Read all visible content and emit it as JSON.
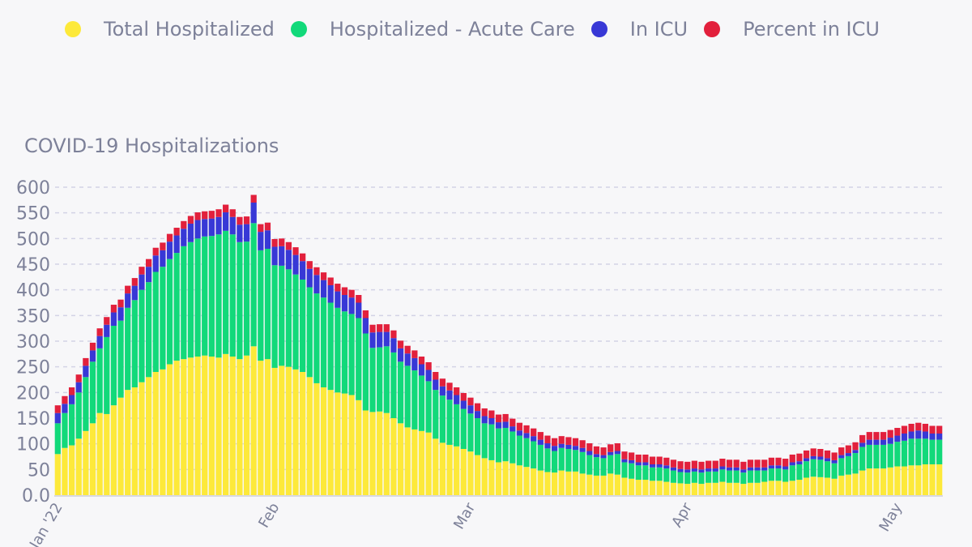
{
  "legend": [
    {
      "label": "Total Hospitalized",
      "color": "#fde93a"
    },
    {
      "label": "Hospitalized - Acute Care",
      "color": "#12d97a"
    },
    {
      "label": "In ICU",
      "color": "#3838d6"
    },
    {
      "label": "Percent in ICU",
      "color": "#e2203c"
    }
  ],
  "chart_data": {
    "type": "bar",
    "stacked": true,
    "title": "COVID-19 Hospitalizations",
    "xlabel": "",
    "ylabel": "",
    "ylim": [
      0,
      600
    ],
    "yticks": [
      "0.0",
      "50",
      "100",
      "150",
      "200",
      "250",
      "300",
      "350",
      "400",
      "450",
      "500",
      "550",
      "600"
    ],
    "ytick_values": [
      0,
      50,
      100,
      150,
      200,
      250,
      300,
      350,
      400,
      450,
      500,
      550,
      600
    ],
    "xticks": [
      {
        "label": "Jan '22",
        "index": 0
      },
      {
        "label": "Feb",
        "index": 31
      },
      {
        "label": "Mar",
        "index": 59
      },
      {
        "label": "Apr",
        "index": 90
      },
      {
        "label": "May",
        "index": 120
      }
    ],
    "grid": true,
    "legend_position": "top",
    "series": [
      {
        "name": "Total Hospitalized",
        "values": [
          80,
          92,
          97,
          110,
          125,
          140,
          160,
          158,
          175,
          190,
          205,
          210,
          220,
          230,
          240,
          245,
          255,
          262,
          265,
          268,
          270,
          272,
          270,
          268,
          275,
          270,
          265,
          272,
          290,
          262,
          265,
          248,
          252,
          250,
          245,
          240,
          230,
          218,
          210,
          205,
          200,
          198,
          195,
          185,
          165,
          162,
          163,
          160,
          150,
          140,
          132,
          128,
          125,
          122,
          110,
          102,
          98,
          95,
          90,
          85,
          78,
          72,
          68,
          64,
          66,
          62,
          58,
          55,
          52,
          48,
          45,
          44,
          48,
          46,
          46,
          42,
          40,
          38,
          38,
          42,
          40,
          34,
          32,
          30,
          30,
          28,
          28,
          26,
          24,
          23,
          22,
          24,
          22,
          24,
          24,
          26,
          24,
          24,
          22,
          24,
          24,
          26,
          28,
          28,
          26,
          28,
          30,
          34,
          36,
          35,
          34,
          32,
          38,
          40,
          42,
          48,
          52,
          52,
          52,
          54,
          56,
          56,
          58,
          58,
          60,
          60,
          60
        ]
      },
      {
        "name": "Hospitalized - Acute Care",
        "values": [
          60,
          68,
          80,
          90,
          105,
          120,
          126,
          150,
          155,
          150,
          160,
          170,
          180,
          185,
          195,
          200,
          205,
          210,
          220,
          225,
          230,
          232,
          235,
          240,
          240,
          238,
          228,
          222,
          240,
          215,
          215,
          200,
          195,
          190,
          185,
          180,
          175,
          175,
          175,
          170,
          165,
          160,
          158,
          160,
          150,
          125,
          125,
          130,
          128,
          120,
          120,
          115,
          108,
          100,
          95,
          92,
          88,
          82,
          78,
          74,
          72,
          68,
          70,
          66,
          65,
          62,
          58,
          56,
          53,
          50,
          46,
          42,
          44,
          44,
          42,
          42,
          38,
          36,
          34,
          36,
          40,
          30,
          30,
          28,
          28,
          26,
          26,
          26,
          24,
          22,
          22,
          22,
          22,
          22,
          22,
          24,
          24,
          24,
          22,
          24,
          24,
          22,
          24,
          24,
          24,
          30,
          30,
          32,
          34,
          34,
          32,
          30,
          34,
          36,
          40,
          46,
          46,
          46,
          46,
          46,
          48,
          50,
          52,
          52,
          50,
          48,
          48
        ]
      },
      {
        "name": "In ICU",
        "values": [
          20,
          18,
          18,
          20,
          22,
          22,
          24,
          24,
          26,
          26,
          28,
          28,
          30,
          30,
          32,
          32,
          34,
          34,
          34,
          36,
          36,
          34,
          34,
          34,
          36,
          34,
          34,
          34,
          40,
          36,
          36,
          36,
          38,
          38,
          38,
          36,
          36,
          36,
          34,
          34,
          32,
          32,
          32,
          30,
          30,
          30,
          30,
          28,
          28,
          26,
          24,
          24,
          22,
          22,
          20,
          18,
          18,
          18,
          16,
          16,
          14,
          14,
          12,
          12,
          12,
          10,
          10,
          10,
          10,
          10,
          10,
          10,
          8,
          8,
          8,
          8,
          8,
          6,
          6,
          6,
          6,
          6,
          6,
          6,
          6,
          6,
          6,
          6,
          6,
          6,
          6,
          6,
          6,
          6,
          6,
          6,
          6,
          6,
          6,
          6,
          6,
          6,
          6,
          6,
          6,
          6,
          6,
          6,
          6,
          6,
          6,
          6,
          6,
          6,
          6,
          8,
          10,
          10,
          10,
          12,
          12,
          14,
          14,
          16,
          14,
          12,
          12
        ]
      },
      {
        "name": "Percent in ICU",
        "values": [
          15,
          15,
          15,
          15,
          15,
          15,
          15,
          15,
          15,
          15,
          15,
          15,
          15,
          15,
          15,
          15,
          15,
          15,
          15,
          15,
          15,
          15,
          15,
          15,
          15,
          15,
          15,
          15,
          15,
          15,
          15,
          15,
          15,
          15,
          15,
          15,
          15,
          15,
          15,
          15,
          15,
          15,
          15,
          15,
          15,
          15,
          15,
          15,
          15,
          15,
          15,
          15,
          15,
          15,
          15,
          15,
          15,
          15,
          15,
          15,
          15,
          15,
          15,
          15,
          15,
          15,
          15,
          15,
          15,
          15,
          15,
          15,
          15,
          15,
          15,
          15,
          15,
          15,
          15,
          15,
          15,
          15,
          15,
          15,
          15,
          15,
          15,
          15,
          15,
          15,
          15,
          15,
          15,
          15,
          15,
          15,
          15,
          15,
          15,
          15,
          15,
          15,
          15,
          15,
          15,
          15,
          15,
          15,
          15,
          15,
          15,
          15,
          15,
          15,
          15,
          15,
          15,
          15,
          15,
          15,
          15,
          15,
          15,
          15,
          15,
          15,
          15
        ]
      }
    ]
  }
}
